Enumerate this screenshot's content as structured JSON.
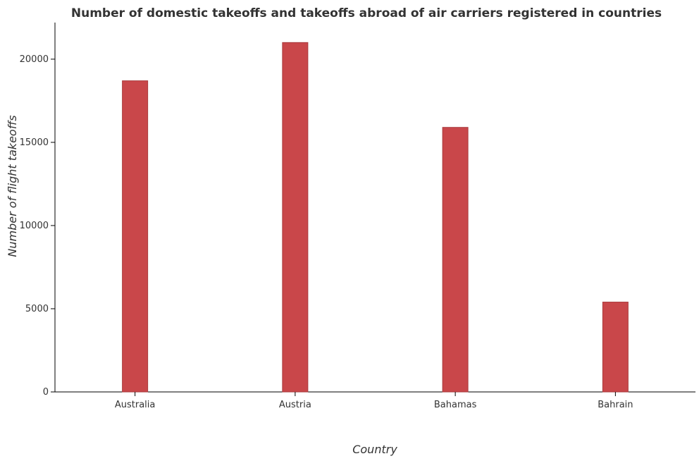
{
  "chart_data": {
    "type": "bar",
    "title": "Number of domestic takeoffs and takeoffs abroad of air carriers registered in countries",
    "xlabel": "Country",
    "ylabel": "Number of flight takeoffs",
    "categories": [
      "Australia",
      "Austria",
      "Bahamas",
      "Bahrain"
    ],
    "values": [
      18700,
      21000,
      15900,
      5400
    ],
    "ylim": [
      0,
      22200
    ],
    "yticks": [
      0,
      5000,
      10000,
      15000,
      20000
    ],
    "ytick_labels": [
      "0",
      "5000",
      "10000",
      "15000",
      "20000"
    ],
    "grid": false,
    "legend": "none",
    "colors": {
      "bar_fill": "#c9474a",
      "bar_stroke": "#a93b3d",
      "axis": "#000000",
      "text": "#333333"
    }
  }
}
